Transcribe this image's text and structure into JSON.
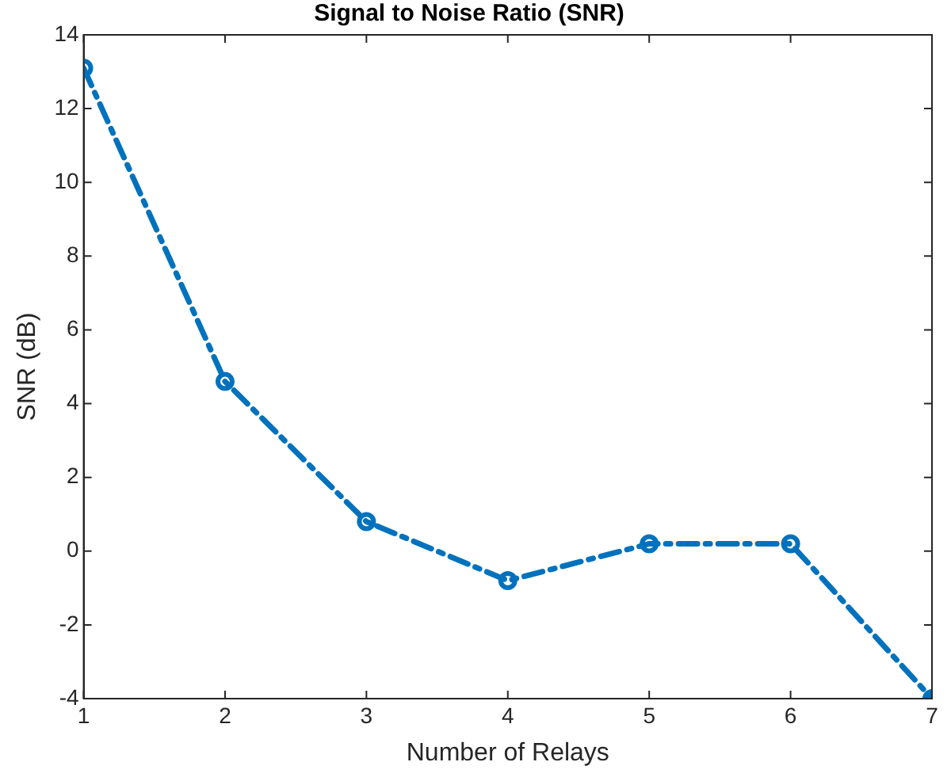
{
  "chart_data": {
    "type": "line",
    "title": "Signal to Noise Ratio (SNR)",
    "xlabel": "Number of Relays",
    "ylabel": "SNR (dB)",
    "x": [
      1,
      2,
      3,
      4,
      5,
      6,
      7
    ],
    "series": [
      {
        "color": "#0072bd",
        "values": [
          13.1,
          4.6,
          0.8,
          -0.8,
          0.2,
          0.2,
          -4.0
        ]
      }
    ],
    "xlim": [
      1,
      7
    ],
    "xticks": [
      1,
      2,
      3,
      4,
      5,
      6,
      7
    ],
    "ylim": [
      -4,
      14
    ],
    "yticks": [
      -4,
      -2,
      0,
      2,
      4,
      6,
      8,
      10,
      12,
      14
    ],
    "grid": false,
    "legend": false,
    "marker": "circle",
    "line_style": "dashed"
  }
}
